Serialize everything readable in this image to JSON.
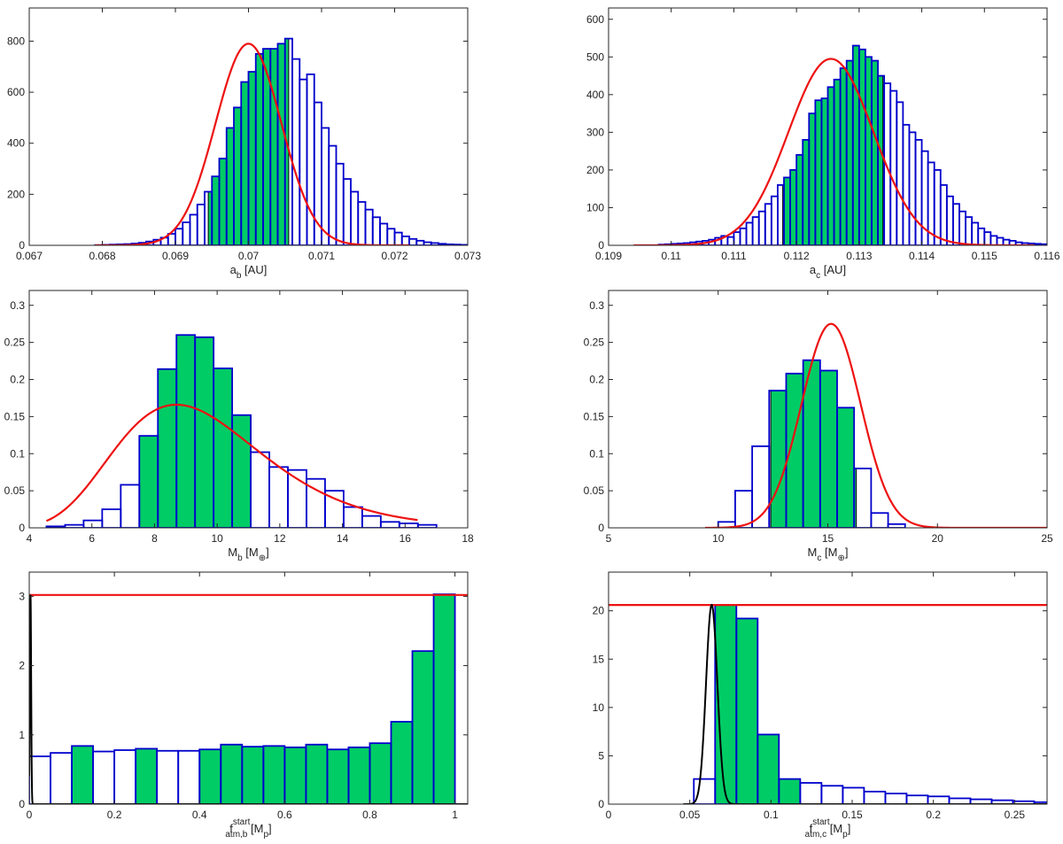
{
  "figure": {
    "name": "posterior distributions figure"
  },
  "colors": {
    "fill": "#00cc66",
    "outline": "#0000cc",
    "fit": "#ee1111",
    "prior": "#000000",
    "axis": "#262626"
  },
  "chart_data": [
    {
      "id": "a_b",
      "type": "histogram",
      "xlabel": {
        "main": "a",
        "sub": "b",
        "after": " [AU]"
      },
      "xlim": [
        0.067,
        0.073
      ],
      "ylim": [
        0,
        930
      ],
      "xticks": [
        0.067,
        0.068,
        0.069,
        0.07,
        0.071,
        0.072,
        0.073
      ],
      "xtick_labels": [
        "0.067",
        "0.068",
        "0.069",
        "0.07",
        "0.071",
        "0.072",
        "0.073"
      ],
      "yticks": [
        0,
        200,
        400,
        600,
        800
      ],
      "ytick_labels": [
        "0",
        "200",
        "400",
        "600",
        "800"
      ],
      "bin_edges_start": 0.0679,
      "bin_width": 0.0001,
      "counts": [
        1,
        2,
        3,
        4,
        5,
        7,
        10,
        15,
        22,
        30,
        45,
        65,
        90,
        120,
        160,
        210,
        270,
        340,
        460,
        540,
        640,
        680,
        750,
        770,
        770,
        790,
        810,
        730,
        650,
        670,
        560,
        460,
        390,
        320,
        260,
        210,
        170,
        140,
        110,
        85,
        65,
        50,
        35,
        25,
        18,
        12,
        9,
        6,
        4,
        3,
        2,
        1,
        1
      ],
      "shaded": [
        0.06945,
        0.07055
      ],
      "fit": {
        "type": "gaussian",
        "mu": 0.07,
        "sigma": 0.00045,
        "amp": 790,
        "range": [
          0.0679,
          0.0722
        ]
      }
    },
    {
      "id": "a_c",
      "type": "histogram",
      "xlabel": {
        "main": "a",
        "sub": "c",
        "after": " [AU]"
      },
      "xlim": [
        0.109,
        0.116
      ],
      "ylim": [
        0,
        630
      ],
      "xticks": [
        0.109,
        0.11,
        0.111,
        0.112,
        0.113,
        0.114,
        0.115,
        0.116
      ],
      "xtick_labels": [
        "0.109",
        "0.11",
        "0.111",
        "0.112",
        "0.113",
        "0.114",
        "0.115",
        "0.116"
      ],
      "yticks": [
        0,
        100,
        200,
        300,
        400,
        500,
        600
      ],
      "ytick_labels": [
        "0",
        "100",
        "200",
        "300",
        "400",
        "500",
        "600"
      ],
      "bin_edges_start": 0.1098,
      "bin_width": 0.0001,
      "counts": [
        2,
        3,
        4,
        5,
        6,
        8,
        10,
        12,
        15,
        20,
        25,
        22,
        35,
        45,
        60,
        75,
        90,
        110,
        130,
        160,
        180,
        200,
        240,
        280,
        350,
        385,
        390,
        420,
        440,
        470,
        490,
        530,
        520,
        500,
        490,
        450,
        430,
        410,
        380,
        320,
        300,
        280,
        250,
        220,
        200,
        160,
        130,
        110,
        90,
        75,
        60,
        45,
        35,
        25,
        20,
        15,
        12,
        8,
        6,
        5,
        4,
        3,
        2,
        2,
        1,
        1,
        1,
        1
      ],
      "shaded": [
        0.11178,
        0.11338
      ],
      "fit": {
        "type": "gaussian",
        "mu": 0.11255,
        "sigma": 0.00068,
        "amp": 495,
        "range": [
          0.1094,
          0.1158
        ]
      }
    },
    {
      "id": "M_b",
      "type": "histogram",
      "xlabel": {
        "main": "M",
        "sub": "b",
        "after": " [M",
        "sub2": "⊕",
        "close": "]"
      },
      "xlim": [
        4,
        18
      ],
      "ylim": [
        0,
        0.32
      ],
      "xticks": [
        4,
        6,
        8,
        10,
        12,
        14,
        16,
        18
      ],
      "xtick_labels": [
        "4",
        "6",
        "8",
        "10",
        "12",
        "14",
        "16",
        "18"
      ],
      "yticks": [
        0,
        0.05,
        0.1,
        0.15,
        0.2,
        0.25,
        0.3
      ],
      "ytick_labels": [
        "0",
        "0.05",
        "0.1",
        "0.15",
        "0.2",
        "0.25",
        "0.3"
      ],
      "bin_edges_start": 4.55,
      "bin_width": 0.593,
      "counts": [
        0.002,
        0.004,
        0.01,
        0.025,
        0.058,
        0.124,
        0.214,
        0.26,
        0.257,
        0.215,
        0.152,
        0.102,
        0.082,
        0.078,
        0.066,
        0.05,
        0.028,
        0.016,
        0.008,
        0.006,
        0.004
      ],
      "shaded": [
        7.515,
        11.07
      ],
      "fit": {
        "type": "lognormal",
        "mode": 8.7,
        "sigma": 0.27,
        "amp": 0.166,
        "range": [
          4.55,
          16.4
        ]
      }
    },
    {
      "id": "M_c",
      "type": "histogram",
      "xlabel": {
        "main": "M",
        "sub": "c",
        "after": " [M",
        "sub2": "⊕",
        "close": "]"
      },
      "xlim": [
        5,
        25
      ],
      "ylim": [
        0,
        0.32
      ],
      "xticks": [
        5,
        10,
        15,
        20,
        25
      ],
      "xtick_labels": [
        "5",
        "10",
        "15",
        "20",
        "25"
      ],
      "yticks": [
        0,
        0.05,
        0.1,
        0.15,
        0.2,
        0.25,
        0.3
      ],
      "ytick_labels": [
        "0",
        "0.05",
        "0.1",
        "0.15",
        "0.2",
        "0.25",
        "0.3"
      ],
      "bin_edges_start": 10.0,
      "bin_width": 0.775,
      "counts": [
        0.008,
        0.05,
        0.11,
        0.185,
        0.208,
        0.226,
        0.212,
        0.162,
        0.08,
        0.02,
        0.005
      ],
      "shaded": [
        12.4,
        16.3
      ],
      "fit": {
        "type": "gaussian",
        "mu": 15.15,
        "sigma": 1.35,
        "amp": 0.275,
        "range": [
          9.4,
          25
        ]
      }
    },
    {
      "id": "f_b",
      "type": "histogram",
      "xlabel": {
        "main": "f",
        "sup": "start",
        "sub": "atm,b",
        "after": "  [M",
        "sub2": "p",
        "close": "]"
      },
      "xlim": [
        0,
        1.03
      ],
      "ylim": [
        0,
        3.35
      ],
      "xticks": [
        0,
        0.2,
        0.4,
        0.6,
        0.8,
        1
      ],
      "xtick_labels": [
        "0",
        "0.2",
        "0.4",
        "0.6",
        "0.8",
        "1"
      ],
      "yticks": [
        0,
        1,
        2,
        3
      ],
      "ytick_labels": [
        "0",
        "1",
        "2",
        "3"
      ],
      "bin_edges_start": 0,
      "bin_width": 0.05,
      "counts": [
        0.69,
        0.74,
        0.84,
        0.76,
        0.78,
        0.8,
        0.77,
        0.77,
        0.79,
        0.86,
        0.83,
        0.84,
        0.82,
        0.86,
        0.79,
        0.82,
        0.88,
        1.19,
        2.21,
        3.03
      ],
      "shaded_bins": [
        2,
        5,
        8,
        9,
        10,
        11,
        12,
        13,
        14,
        15,
        16,
        17,
        18,
        19
      ],
      "flat_line": 3.02,
      "spike": {
        "mu": 0.003,
        "sigma": 0.0015,
        "amp": 3.02
      }
    },
    {
      "id": "f_c",
      "type": "histogram",
      "xlabel": {
        "main": "f",
        "sup": "start",
        "sub": "atm,c",
        "after": "  [M",
        "sub2": "p",
        "close": "]"
      },
      "xlim": [
        0,
        0.27
      ],
      "ylim": [
        0,
        24
      ],
      "xticks": [
        0,
        0.05,
        0.1,
        0.15,
        0.2,
        0.25
      ],
      "xtick_labels": [
        "0",
        "0.05",
        "0.1",
        "0.15",
        "0.2",
        "0.25"
      ],
      "yticks": [
        0,
        5,
        10,
        15,
        20
      ],
      "ytick_labels": [
        "0",
        "5",
        "10",
        "15",
        "20"
      ],
      "bin_edges_start": 0.0525,
      "bin_width": 0.0131,
      "counts": [
        2.6,
        20.6,
        19.2,
        7.2,
        2.6,
        2.2,
        1.9,
        1.7,
        1.3,
        1.1,
        0.9,
        0.8,
        0.6,
        0.5,
        0.4,
        0.3,
        0.2
      ],
      "shaded": [
        0.0656,
        0.118
      ],
      "flat_line": 20.6,
      "spike": {
        "mu": 0.0635,
        "sigma": 0.0035,
        "amp": 20.6
      }
    }
  ]
}
